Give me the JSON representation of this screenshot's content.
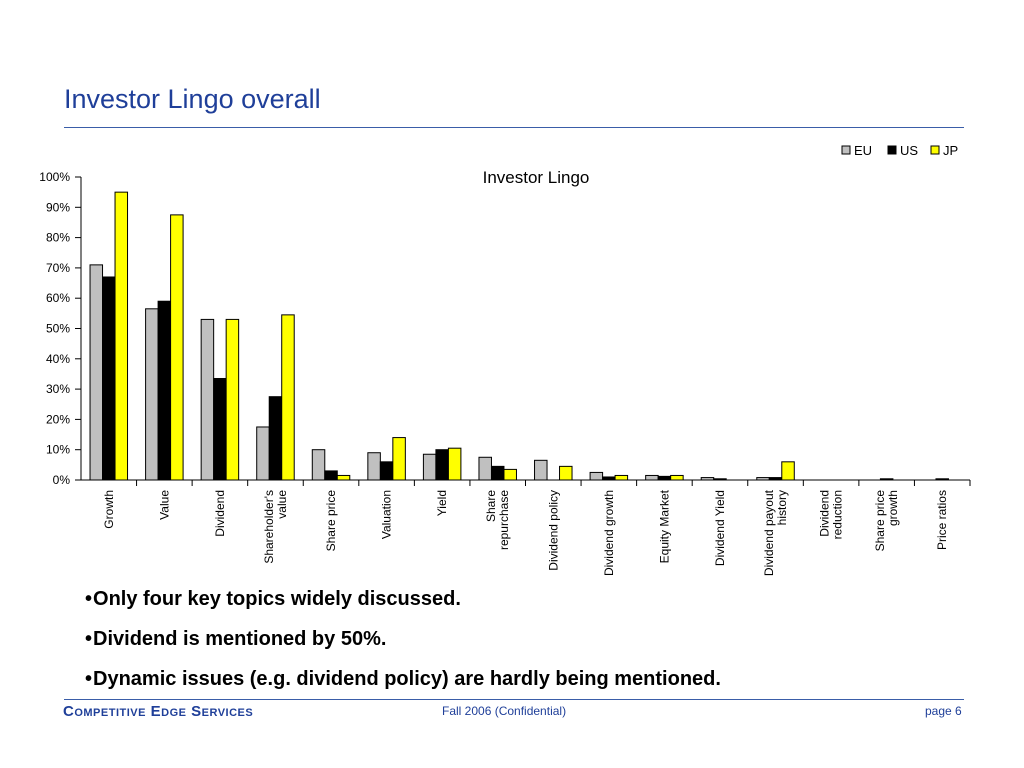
{
  "slide": {
    "title": "Investor Lingo overall",
    "bullets": [
      "Only four key topics widely discussed.",
      "Dividend is mentioned by 50%.",
      "Dynamic issues (e.g. dividend policy) are hardly being mentioned."
    ],
    "bullet_char": "•"
  },
  "footer": {
    "brand": "Competitive Edge Services",
    "center": "Fall 2006 (Confidential)",
    "page": "page 6"
  },
  "chart_data": {
    "type": "bar",
    "title": "Investor Lingo",
    "xlabel": "",
    "ylabel": "",
    "ylim": [
      0,
      100
    ],
    "yticks": [
      "0%",
      "10%",
      "20%",
      "30%",
      "40%",
      "50%",
      "60%",
      "70%",
      "80%",
      "90%",
      "100%"
    ],
    "legend_position": "top-right",
    "grid": false,
    "categories": [
      [
        "Growth"
      ],
      [
        "Value"
      ],
      [
        "Dividend"
      ],
      [
        "Shareholder's",
        "value"
      ],
      [
        "Share price"
      ],
      [
        "Valuation"
      ],
      [
        "Yield"
      ],
      [
        "Share",
        "repurchase"
      ],
      [
        "Dividend policy"
      ],
      [
        "Dividend growth"
      ],
      [
        "Equity Market"
      ],
      [
        "Dividend Yield"
      ],
      [
        "Dividend payout",
        "history"
      ],
      [
        "Dividend",
        "reduction"
      ],
      [
        "Share price",
        "growth"
      ],
      [
        "Price ratios"
      ]
    ],
    "series": [
      {
        "name": "EU",
        "color": "#c0c0c0",
        "values": [
          71,
          56.5,
          53,
          17.5,
          10,
          9,
          8.5,
          7.5,
          6.5,
          2.5,
          1.5,
          0.8,
          0.8,
          0,
          0,
          0
        ]
      },
      {
        "name": "US",
        "color": "#000000",
        "values": [
          67,
          59,
          33.5,
          27.5,
          3,
          6,
          10,
          4.5,
          0,
          1,
          1.2,
          0.4,
          0.8,
          0,
          0.4,
          0.4
        ]
      },
      {
        "name": "JP",
        "color": "#ffff00",
        "values": [
          95,
          87.5,
          53,
          54.5,
          1.5,
          14,
          10.5,
          3.5,
          4.5,
          1.5,
          1.5,
          0,
          6,
          0,
          0,
          0
        ]
      }
    ]
  }
}
